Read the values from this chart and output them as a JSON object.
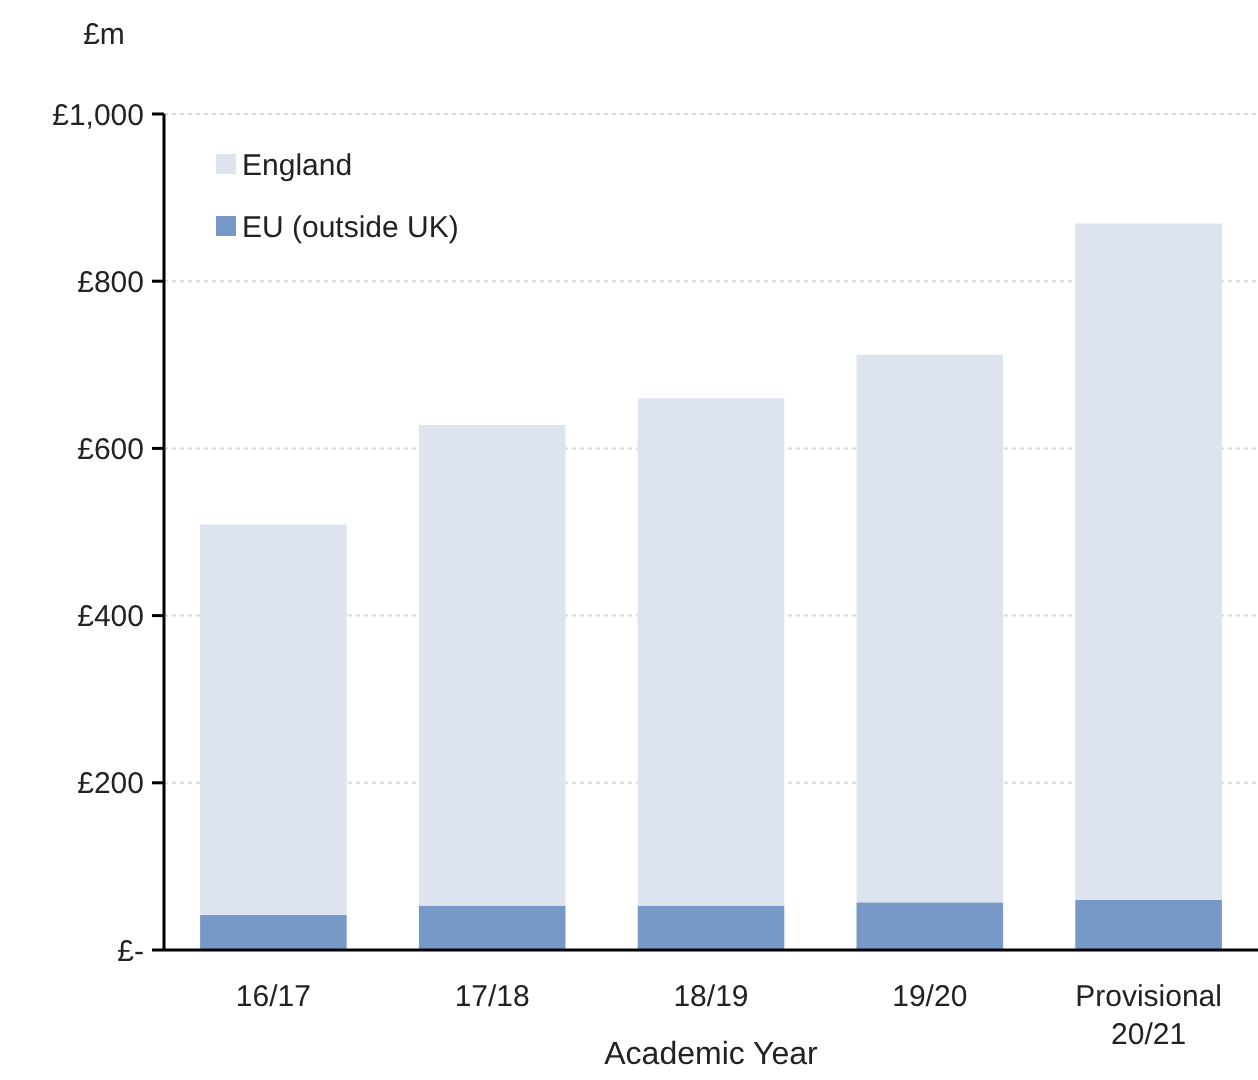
{
  "chart_data": {
    "type": "bar",
    "stacked": true,
    "xlabel": "Academic Year",
    "ylabel": "£m",
    "categories": [
      "16/17",
      "17/18",
      "18/19",
      "19/20",
      "Provisional 20/21"
    ],
    "series": [
      {
        "name": "EU (outside UK)",
        "color": "#7699c8",
        "values": [
          42,
          53,
          53,
          57,
          60
        ]
      },
      {
        "name": "England",
        "color": "#dde4f0",
        "values": [
          467,
          575,
          607,
          655,
          809
        ]
      }
    ],
    "ylim": [
      0,
      1000
    ],
    "yticks": [
      {
        "value": 0,
        "label": "£-"
      },
      {
        "value": 200,
        "label": "£200"
      },
      {
        "value": 400,
        "label": "£400"
      },
      {
        "value": 600,
        "label": "£600"
      },
      {
        "value": 800,
        "label": "£800"
      },
      {
        "value": 1000,
        "label": "£1,000"
      }
    ],
    "grid": "y",
    "legend": "top left"
  }
}
